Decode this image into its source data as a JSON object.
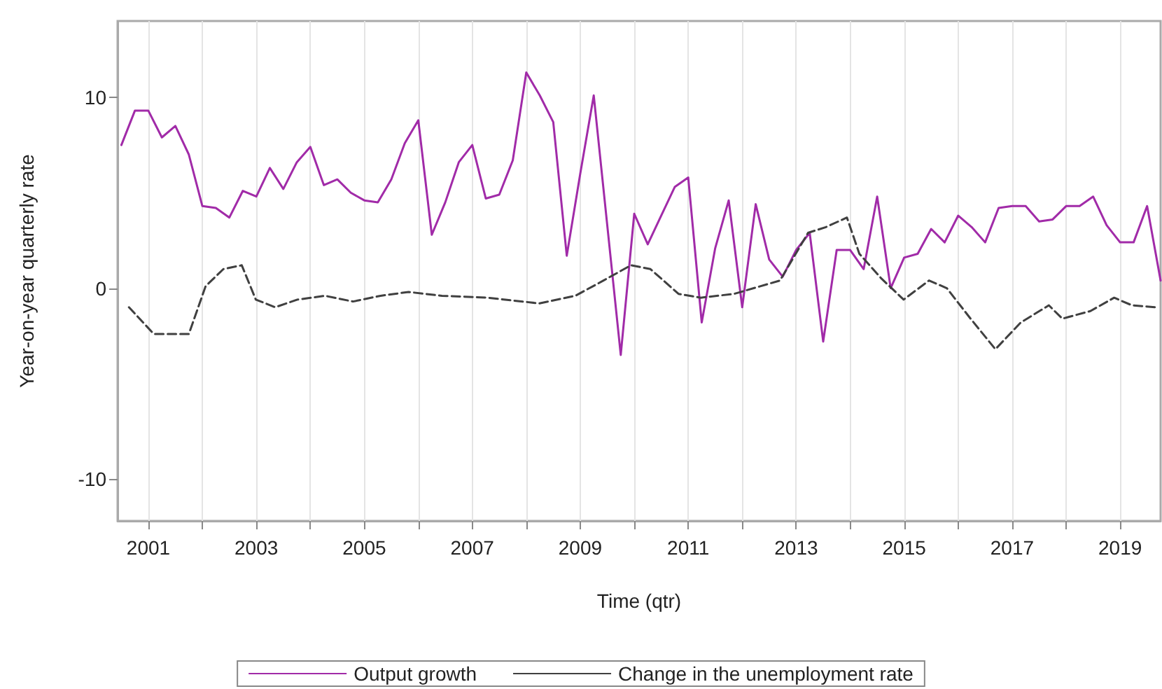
{
  "chart_data": {
    "type": "line",
    "xlabel": "Time (qtr)",
    "ylabel": "Year-on-year quarterly rate",
    "x": [
      2000.5,
      2000.75,
      2001,
      2001.25,
      2001.5,
      2001.75,
      2002,
      2002.25,
      2002.5,
      2002.75,
      2003,
      2003.25,
      2003.5,
      2003.75,
      2004,
      2004.25,
      2004.5,
      2004.75,
      2005,
      2005.25,
      2005.5,
      2005.75,
      2006,
      2006.25,
      2006.5,
      2006.75,
      2007,
      2007.25,
      2007.5,
      2007.75,
      2008,
      2008.25,
      2008.5,
      2008.75,
      2009,
      2009.25,
      2009.5,
      2009.75,
      2010,
      2010.25,
      2010.5,
      2010.75,
      2011,
      2011.25,
      2011.5,
      2011.75,
      2012,
      2012.25,
      2012.5,
      2012.75,
      2013,
      2013.25,
      2013.5,
      2013.75,
      2014,
      2014.25,
      2014.5,
      2014.75,
      2015,
      2015.25,
      2015.5,
      2015.75,
      2016,
      2016.25,
      2016.5,
      2016.75,
      2017,
      2017.25,
      2017.5,
      2017.75,
      2018,
      2018.25,
      2018.5,
      2018.75,
      2019,
      2019.25,
      2019.5,
      2019.75
    ],
    "series": [
      {
        "name": "Output growth",
        "color": "#a12ba8",
        "line_style": "solid",
        "values": [
          7.5,
          9.3,
          9.3,
          7.9,
          8.5,
          7.0,
          4.3,
          4.2,
          3.7,
          5.1,
          4.8,
          6.3,
          5.2,
          6.6,
          7.4,
          5.4,
          5.7,
          5.0,
          4.6,
          4.5,
          5.7,
          7.6,
          8.8,
          2.8,
          4.5,
          6.6,
          7.5,
          4.7,
          4.9,
          6.7,
          11.3,
          10.1,
          8.7,
          1.7,
          6.0,
          10.1,
          3.3,
          -3.5,
          3.9,
          2.3,
          3.8,
          5.3,
          5.8,
          -1.8,
          2.1,
          4.6,
          -1.0,
          4.4,
          1.5,
          0.6,
          2.0,
          2.9,
          -2.8,
          2.0,
          2.0,
          1.0,
          4.8,
          0,
          1.6,
          1.8,
          3.1,
          2.4,
          3.8,
          3.2,
          2.4,
          4.2,
          4.3,
          4.3,
          3.5,
          3.6,
          4.3,
          4.3,
          4.8,
          3.3,
          2.4,
          2.4,
          4.3,
          0.4
        ]
      },
      {
        "name": "Change in the unemployment rate",
        "color": "#404040",
        "line_style": "dashed",
        "x": [
          2000.64,
          2001.1,
          2001.75,
          2002.06,
          2002.39,
          2002.73,
          2002.99,
          2003.35,
          2003.76,
          2004.27,
          2004.79,
          2005.3,
          2005.82,
          2006.44,
          2007.29,
          2008.24,
          2008.91,
          2009.43,
          2009.94,
          2010.3,
          2010.82,
          2011.23,
          2011.85,
          2012.7,
          2013.22,
          2013.55,
          2013.94,
          2014.17,
          2014.58,
          2014.99,
          2015.46,
          2015.79,
          2016.23,
          2016.69,
          2017.16,
          2017.68,
          2017.93,
          2018.45,
          2018.89,
          2019.22,
          2019.66
        ],
        "values": [
          -1.0,
          -2.4,
          -2.4,
          0.1,
          1.0,
          1.2,
          -0.6,
          -1.0,
          -0.6,
          -0.4,
          -0.7,
          -0.4,
          -0.2,
          -0.4,
          -0.5,
          -0.8,
          -0.4,
          0.4,
          1.2,
          1.0,
          -0.3,
          -0.5,
          -0.3,
          0.4,
          2.9,
          3.2,
          3.7,
          1.8,
          0.5,
          -0.6,
          0.4,
          0,
          -1.6,
          -3.2,
          -1.8,
          -0.9,
          -1.6,
          -1.2,
          -0.5,
          -0.9,
          -1.0
        ]
      }
    ],
    "xlim": [
      2000.43,
      2019.75
    ],
    "xticks": [
      2001,
      {
        "value": 2002,
        "label": null
      },
      2003,
      {
        "value": 2004,
        "label": null
      },
      2005,
      {
        "value": 2006,
        "label": null
      },
      2007,
      {
        "value": 2008,
        "label": null
      },
      2009,
      {
        "value": 2010,
        "label": null
      },
      2011,
      {
        "value": 2012,
        "label": null
      },
      2013,
      {
        "value": 2014,
        "label": null
      },
      2015,
      {
        "value": 2016,
        "label": null
      },
      2017,
      {
        "value": 2018,
        "label": null
      },
      2019
    ],
    "ylim": [
      -12.2,
      14
    ],
    "yticks": [
      -10,
      0,
      10
    ],
    "grid": "x",
    "legend": "bottom",
    "marker": "none"
  }
}
